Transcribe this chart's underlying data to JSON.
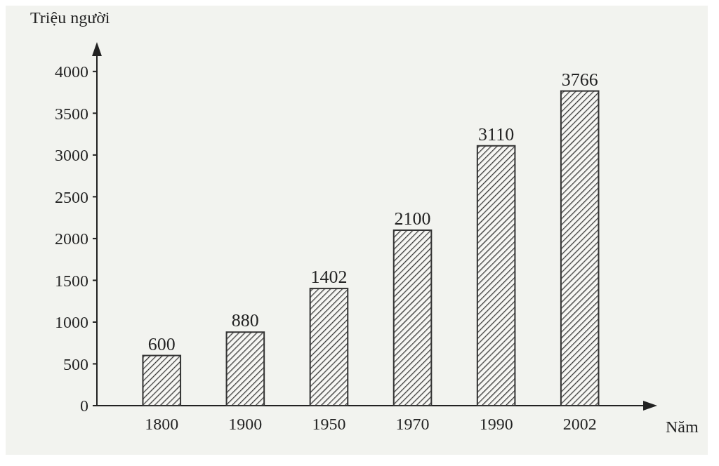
{
  "chart_data": {
    "type": "bar",
    "xlabel": "Năm",
    "ylabel": "Triệu người",
    "categories": [
      "1800",
      "1900",
      "1950",
      "1970",
      "1990",
      "2002"
    ],
    "values": [
      600,
      880,
      1402,
      2100,
      3110,
      3766
    ],
    "color": "#333333",
    "ylim": [
      0,
      4200
    ],
    "yticks": [
      0,
      500,
      1000,
      1500,
      2000,
      2500,
      3000,
      3500,
      4000
    ],
    "data_labels": true,
    "grid": false
  }
}
